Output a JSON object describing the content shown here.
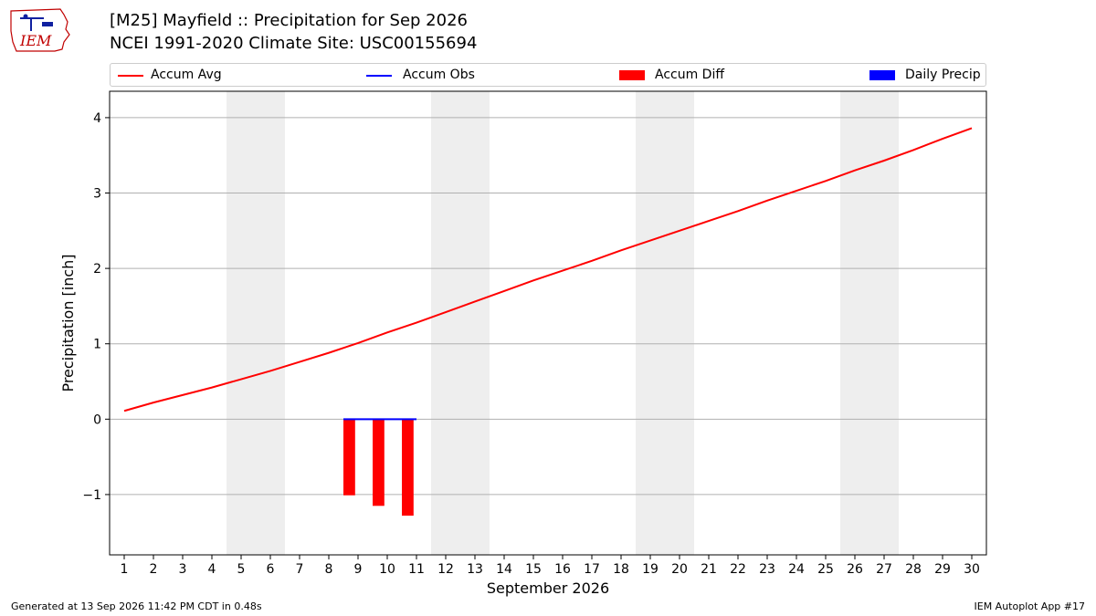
{
  "header": {
    "title_line1": "[M25] Mayfield :: Precipitation for Sep 2026",
    "title_line2": "NCEI 1991-2020 Climate Site: USC00155694",
    "logo_text": "IEM"
  },
  "footer": {
    "left": "Generated at 13 Sep 2026 11:42 PM CDT in 0.48s",
    "right": "IEM Autoplot App #17"
  },
  "legend": {
    "accum_avg": "Accum Avg",
    "accum_obs": "Accum Obs",
    "accum_diff": "Accum Diff",
    "daily_precip": "Daily Precip"
  },
  "colors": {
    "accum_avg": "#ff0000",
    "accum_obs": "#0000ff",
    "accum_diff": "#ff0000",
    "daily_precip": "#0000ff",
    "weekend_shade": "#eeeeee",
    "grid": "#b0b0b0"
  },
  "chart_data": {
    "type": "line",
    "xlabel": "September 2026",
    "ylabel": "Precipitation [inch]",
    "xlim": [
      0.5,
      30.5
    ],
    "ylim": [
      -1.8,
      4.35
    ],
    "x_ticks": [
      1,
      2,
      3,
      4,
      5,
      6,
      7,
      8,
      9,
      10,
      11,
      12,
      13,
      14,
      15,
      16,
      17,
      18,
      19,
      20,
      21,
      22,
      23,
      24,
      25,
      26,
      27,
      28,
      29,
      30
    ],
    "y_ticks": [
      {
        "value": -1,
        "label": "−1"
      },
      {
        "value": 0,
        "label": "0"
      },
      {
        "value": 1,
        "label": "1"
      },
      {
        "value": 2,
        "label": "2"
      },
      {
        "value": 3,
        "label": "3"
      },
      {
        "value": 4,
        "label": "4"
      }
    ],
    "grid": "horizontal",
    "weekend_shading": [
      [
        4.5,
        6.5
      ],
      [
        11.5,
        13.5
      ],
      [
        18.5,
        20.5
      ],
      [
        25.5,
        27.5
      ]
    ],
    "series": [
      {
        "name": "Accum Avg",
        "type": "line",
        "x": [
          1,
          2,
          3,
          4,
          5,
          6,
          7,
          8,
          9,
          10,
          11,
          12,
          13,
          14,
          15,
          16,
          17,
          18,
          19,
          20,
          21,
          22,
          23,
          24,
          25,
          26,
          27,
          28,
          29,
          30
        ],
        "values": [
          0.11,
          0.22,
          0.32,
          0.42,
          0.53,
          0.64,
          0.76,
          0.88,
          1.01,
          1.15,
          1.28,
          1.42,
          1.56,
          1.7,
          1.84,
          1.97,
          2.1,
          2.24,
          2.37,
          2.5,
          2.63,
          2.76,
          2.9,
          3.03,
          3.16,
          3.3,
          3.43,
          3.57,
          3.72,
          3.86
        ]
      },
      {
        "name": "Accum Obs",
        "type": "line",
        "x": [
          9,
          10,
          11
        ],
        "values": [
          0.0,
          0.0,
          0.0
        ]
      },
      {
        "name": "Accum Diff",
        "type": "bar",
        "x": [
          9,
          10,
          11
        ],
        "values": [
          -1.01,
          -1.15,
          -1.28
        ]
      },
      {
        "name": "Daily Precip",
        "type": "bar",
        "x": [
          9,
          10,
          11
        ],
        "values": [
          0.0,
          0.0,
          0.0
        ]
      }
    ]
  }
}
